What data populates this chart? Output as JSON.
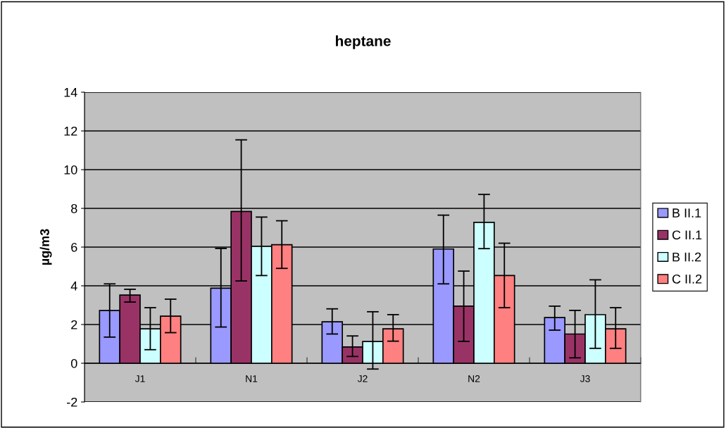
{
  "chart_data": {
    "type": "bar",
    "title": "heptane",
    "ylabel": "µg/m3",
    "categories": [
      "J1",
      "N1",
      "J2",
      "N2",
      "J3"
    ],
    "series": [
      {
        "name": "B II.1",
        "color": "#9999ff",
        "values": [
          2.72,
          3.88,
          2.14,
          5.9,
          2.36
        ],
        "errors": [
          [
            1.35,
            4.1
          ],
          [
            1.87,
            5.93
          ],
          [
            1.51,
            2.81
          ],
          [
            4.1,
            7.65
          ],
          [
            1.71,
            2.95
          ]
        ]
      },
      {
        "name": "C II.1",
        "color": "#993366",
        "values": [
          3.52,
          7.84,
          0.84,
          2.95,
          1.51
        ],
        "errors": [
          [
            3.16,
            3.82
          ],
          [
            4.25,
            11.54
          ],
          [
            0.35,
            1.41
          ],
          [
            1.13,
            4.76
          ],
          [
            0.28,
            2.73
          ]
        ]
      },
      {
        "name": "B II.2",
        "color": "#ccffff",
        "values": [
          1.78,
          6.04,
          1.12,
          7.28,
          2.51
        ],
        "errors": [
          [
            0.7,
            2.87
          ],
          [
            4.53,
            7.55
          ],
          [
            -0.3,
            2.66
          ],
          [
            5.92,
            8.72
          ],
          [
            0.77,
            4.31
          ]
        ]
      },
      {
        "name": "C II.2",
        "color": "#ff8080",
        "values": [
          2.43,
          6.12,
          1.78,
          4.53,
          1.78
        ],
        "errors": [
          [
            1.58,
            3.31
          ],
          [
            4.9,
            7.36
          ],
          [
            1.14,
            2.51
          ],
          [
            2.87,
            6.2
          ],
          [
            0.77,
            2.87
          ]
        ]
      }
    ],
    "ylim": [
      -2,
      14
    ],
    "yticks": [
      -2,
      0,
      2,
      4,
      6,
      8,
      10,
      12,
      14
    ],
    "grid": "y",
    "legend": "right"
  }
}
